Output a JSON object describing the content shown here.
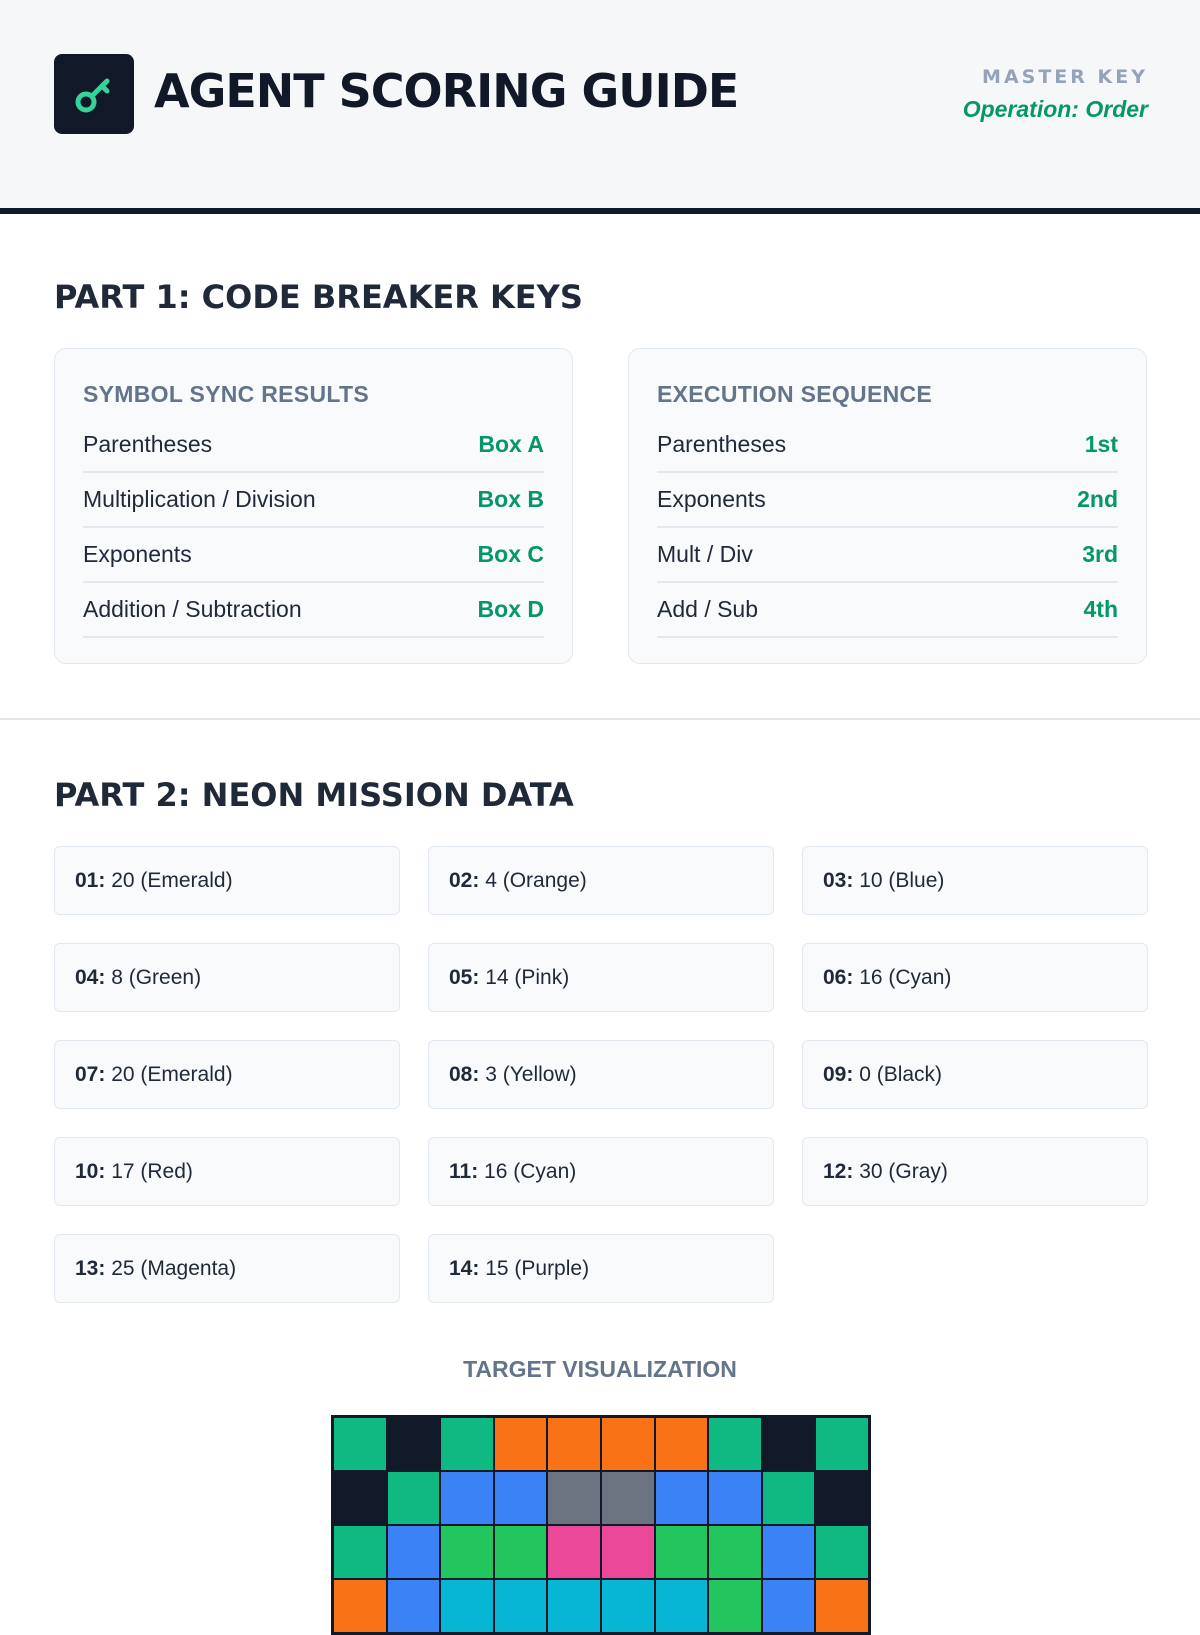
{
  "header": {
    "logo_icon": "key-icon",
    "title": "AGENT SCORING GUIDE",
    "master_key": "MASTER KEY",
    "operation": "Operation: Order"
  },
  "part1": {
    "title": "PART 1: CODE BREAKER KEYS",
    "symbol_sync": {
      "title": "SYMBOL SYNC RESULTS",
      "rows": [
        {
          "label": "Parentheses",
          "value": "Box A"
        },
        {
          "label": "Multiplication / Division",
          "value": "Box B"
        },
        {
          "label": "Exponents",
          "value": "Box C"
        },
        {
          "label": "Addition / Subtraction",
          "value": "Box D"
        }
      ]
    },
    "execution": {
      "title": "EXECUTION SEQUENCE",
      "rows": [
        {
          "label": "Parentheses",
          "value": "1st"
        },
        {
          "label": "Exponents",
          "value": "2nd"
        },
        {
          "label": "Mult / Div",
          "value": "3rd"
        },
        {
          "label": "Add / Sub",
          "value": "4th"
        }
      ]
    }
  },
  "part2": {
    "title": "PART 2: NEON MISSION DATA",
    "items": [
      {
        "num": "01:",
        "text": " 20 (Emerald)"
      },
      {
        "num": "02:",
        "text": " 4 (Orange)"
      },
      {
        "num": "03:",
        "text": " 10 (Blue)"
      },
      {
        "num": "04:",
        "text": " 8 (Green)"
      },
      {
        "num": "05:",
        "text": " 14 (Pink)"
      },
      {
        "num": "06:",
        "text": " 16 (Cyan)"
      },
      {
        "num": "07:",
        "text": " 20 (Emerald)"
      },
      {
        "num": "08:",
        "text": " 3 (Yellow)"
      },
      {
        "num": "09:",
        "text": " 0 (Black)"
      },
      {
        "num": "10:",
        "text": " 17 (Red)"
      },
      {
        "num": "11:",
        "text": " 16 (Cyan)"
      },
      {
        "num": "12:",
        "text": " 30 (Gray)"
      },
      {
        "num": "13:",
        "text": " 25 (Magenta)"
      },
      {
        "num": "14:",
        "text": " 15 (Purple)"
      }
    ],
    "viz_title": "TARGET VISUALIZATION",
    "palette": {
      "E": "#10b981",
      "K": "#111827",
      "O": "#f97316",
      "B": "#3b82f6",
      "G": "#22c55e",
      "P": "#ec4899",
      "C": "#06b6d4",
      "Y": "#6b7280"
    },
    "viz_rows": [
      [
        "E",
        "K",
        "E",
        "O",
        "O",
        "O",
        "O",
        "E",
        "K",
        "E"
      ],
      [
        "K",
        "E",
        "B",
        "B",
        "Y",
        "Y",
        "B",
        "B",
        "E",
        "K"
      ],
      [
        "E",
        "B",
        "G",
        "G",
        "P",
        "P",
        "G",
        "G",
        "B",
        "E"
      ],
      [
        "O",
        "B",
        "C",
        "C",
        "C",
        "C",
        "C",
        "G",
        "B",
        "O"
      ]
    ]
  }
}
